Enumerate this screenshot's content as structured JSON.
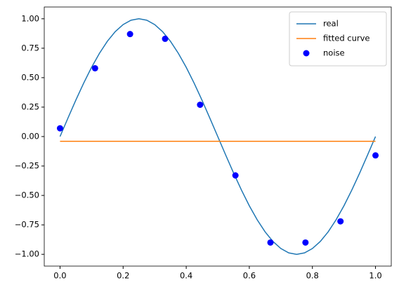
{
  "chart_data": {
    "type": "line",
    "xlim": [
      -0.05,
      1.05
    ],
    "ylim": [
      -1.1,
      1.1
    ],
    "xticks": [
      {
        "value": 0,
        "label": "0.0"
      },
      {
        "value": 0.2,
        "label": "0.2"
      },
      {
        "value": 0.4,
        "label": "0.4"
      },
      {
        "value": 0.6,
        "label": "0.6"
      },
      {
        "value": 0.8,
        "label": "0.8"
      },
      {
        "value": 1,
        "label": "1.0"
      }
    ],
    "yticks": [
      {
        "value": -1,
        "label": "−1.00"
      },
      {
        "value": -0.75,
        "label": "−0.75"
      },
      {
        "value": -0.5,
        "label": "−0.50"
      },
      {
        "value": -0.25,
        "label": "−0.25"
      },
      {
        "value": 0,
        "label": "0.00"
      },
      {
        "value": 0.25,
        "label": "0.25"
      },
      {
        "value": 0.5,
        "label": "0.50"
      },
      {
        "value": 0.75,
        "label": "0.75"
      },
      {
        "value": 1,
        "label": "1.00"
      }
    ],
    "legend": "upper right",
    "series": [
      {
        "name": "real",
        "type": "line",
        "color": "#1f77b4",
        "x": [
          0,
          0.025,
          0.05,
          0.075,
          0.1,
          0.125,
          0.15,
          0.175,
          0.2,
          0.225,
          0.25,
          0.275,
          0.3,
          0.325,
          0.35,
          0.375,
          0.4,
          0.425,
          0.45,
          0.475,
          0.5,
          0.525,
          0.55,
          0.575,
          0.6,
          0.625,
          0.65,
          0.675,
          0.7,
          0.725,
          0.75,
          0.775,
          0.8,
          0.825,
          0.85,
          0.875,
          0.9,
          0.925,
          0.95,
          0.975,
          1
        ],
        "values": [
          0,
          0.156,
          0.309,
          0.454,
          0.588,
          0.707,
          0.809,
          0.891,
          0.951,
          0.988,
          1,
          0.988,
          0.951,
          0.891,
          0.809,
          0.707,
          0.588,
          0.454,
          0.309,
          0.156,
          0,
          -0.156,
          -0.309,
          -0.454,
          -0.588,
          -0.707,
          -0.809,
          -0.891,
          -0.951,
          -0.988,
          -1,
          -0.988,
          -0.951,
          -0.891,
          -0.809,
          -0.707,
          -0.588,
          -0.454,
          -0.309,
          -0.156,
          0
        ]
      },
      {
        "name": "fitted curve",
        "type": "line",
        "color": "#ff7f0e",
        "x": [
          0,
          1
        ],
        "values": [
          -0.04,
          -0.04
        ]
      },
      {
        "name": "noise",
        "type": "scatter",
        "color": "#0000ff",
        "x": [
          0,
          0.111,
          0.222,
          0.333,
          0.444,
          0.556,
          0.667,
          0.778,
          0.889,
          1
        ],
        "values": [
          0.07,
          0.58,
          0.87,
          0.83,
          0.27,
          -0.33,
          -0.9,
          -0.9,
          -0.72,
          -0.16
        ]
      }
    ]
  }
}
